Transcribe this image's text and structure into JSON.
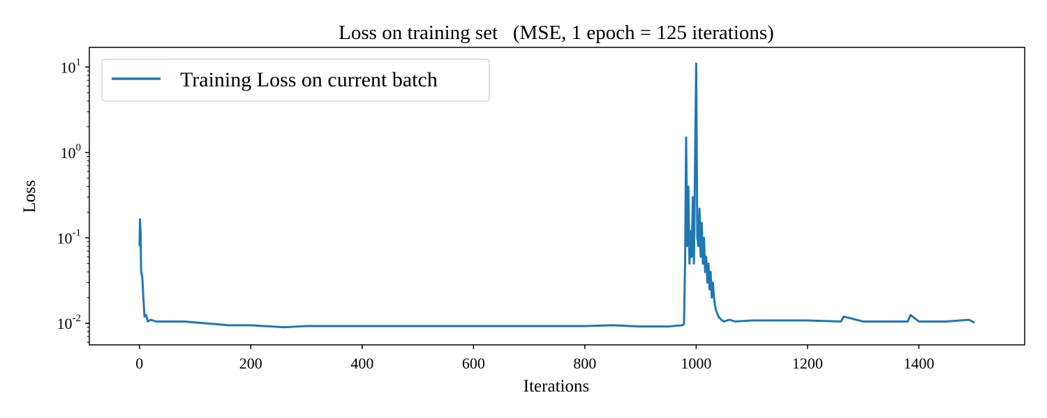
{
  "chart_data": {
    "type": "line",
    "title": "Loss on training set   (MSE, 1 epoch = 125 iterations)",
    "xlabel": "Iterations",
    "ylabel": "Loss",
    "xlim": [
      -90,
      1590
    ],
    "ylim": [
      0.0056,
      17
    ],
    "yscale": "log",
    "x_ticks": [
      0,
      200,
      400,
      600,
      800,
      1000,
      1200,
      1400
    ],
    "x_tick_labels": [
      "0",
      "200",
      "400",
      "600",
      "800",
      "1000",
      "1200",
      "1400"
    ],
    "y_ticks": [
      {
        "value": 0.01,
        "base": "10",
        "exp": "-2"
      },
      {
        "value": 0.1,
        "base": "10",
        "exp": "-1"
      },
      {
        "value": 1,
        "base": "10",
        "exp": "0"
      },
      {
        "value": 10,
        "base": "10",
        "exp": "1"
      }
    ],
    "grid": false,
    "legend_position": "top-left",
    "series": [
      {
        "name": "Training Loss on current batch",
        "color": "#1f77b4",
        "x": [
          0,
          1,
          2,
          3,
          5,
          7,
          9,
          12,
          15,
          20,
          30,
          50,
          80,
          120,
          160,
          200,
          260,
          300,
          400,
          500,
          600,
          700,
          800,
          850,
          900,
          950,
          975,
          978,
          980,
          982,
          984,
          986,
          988,
          990,
          992,
          994,
          996,
          998,
          1000,
          1002,
          1004,
          1006,
          1008,
          1010,
          1012,
          1014,
          1016,
          1018,
          1020,
          1022,
          1024,
          1026,
          1028,
          1030,
          1032,
          1034,
          1036,
          1038,
          1040,
          1045,
          1050,
          1055,
          1060,
          1070,
          1100,
          1200,
          1260,
          1265,
          1300,
          1380,
          1385,
          1400,
          1450,
          1490,
          1500
        ],
        "values": [
          0.08,
          0.165,
          0.12,
          0.04,
          0.035,
          0.02,
          0.012,
          0.0125,
          0.0105,
          0.011,
          0.0105,
          0.0105,
          0.0105,
          0.01,
          0.0095,
          0.0095,
          0.009,
          0.0093,
          0.0093,
          0.0093,
          0.0093,
          0.0093,
          0.0093,
          0.0095,
          0.0092,
          0.0092,
          0.0095,
          0.0098,
          0.05,
          1.5,
          0.08,
          0.4,
          0.05,
          0.12,
          0.06,
          0.3,
          0.05,
          0.8,
          11.0,
          0.1,
          0.08,
          0.22,
          0.06,
          0.15,
          0.05,
          0.1,
          0.04,
          0.06,
          0.03,
          0.05,
          0.025,
          0.04,
          0.02,
          0.03,
          0.02,
          0.016,
          0.014,
          0.013,
          0.012,
          0.011,
          0.0105,
          0.0108,
          0.011,
          0.0105,
          0.0108,
          0.0108,
          0.0105,
          0.012,
          0.0105,
          0.0105,
          0.0125,
          0.0105,
          0.0105,
          0.011,
          0.0102
        ]
      }
    ]
  }
}
